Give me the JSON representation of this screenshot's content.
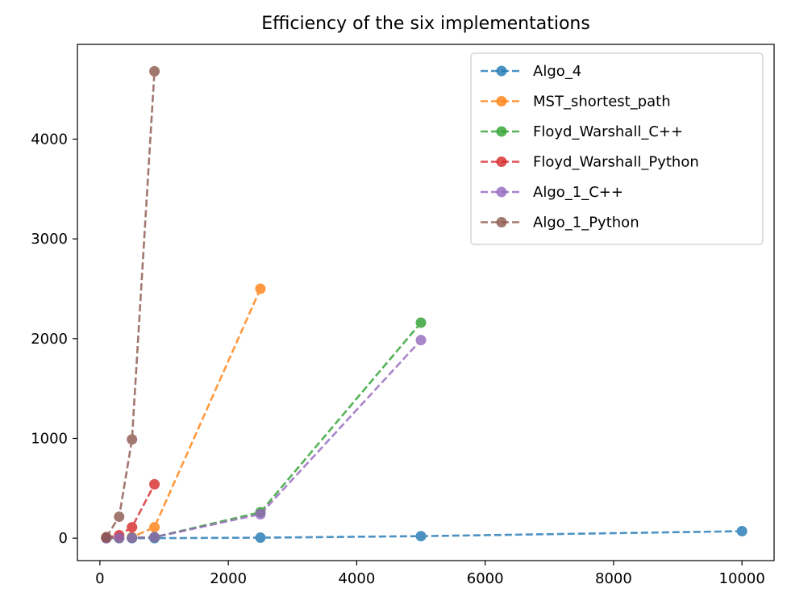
{
  "chart_data": {
    "type": "line",
    "title": "Efficiency of the six implementations",
    "xlabel": "",
    "ylabel": "",
    "xlim": [
      -350,
      10500
    ],
    "ylim": [
      -225,
      4950
    ],
    "xticks": [
      0,
      2000,
      4000,
      6000,
      8000,
      10000
    ],
    "yticks": [
      0,
      1000,
      2000,
      3000,
      4000
    ],
    "legend_position": "top-right",
    "line_style": "dashed",
    "marker": "circle",
    "series": [
      {
        "name": "Algo_4",
        "color": "#1f77b4",
        "x": [
          100,
          300,
          500,
          850,
          2500,
          5000,
          10000
        ],
        "y": [
          0,
          0,
          0,
          0,
          5,
          20,
          70
        ]
      },
      {
        "name": "MST_shortest_path",
        "color": "#ff7f0e",
        "x": [
          100,
          300,
          500,
          850,
          2500
        ],
        "y": [
          0,
          3,
          10,
          110,
          2500
        ]
      },
      {
        "name": "Floyd_Warshall_C++",
        "color": "#2ca02c",
        "x": [
          100,
          300,
          500,
          850,
          2500,
          5000
        ],
        "y": [
          0,
          1,
          3,
          10,
          260,
          2160
        ]
      },
      {
        "name": "Floyd_Warshall_Python",
        "color": "#d62728",
        "x": [
          100,
          300,
          500,
          850
        ],
        "y": [
          5,
          30,
          110,
          540
        ]
      },
      {
        "name": "Algo_1_C++",
        "color": "#9467bd",
        "x": [
          100,
          300,
          500,
          850,
          2500,
          5000
        ],
        "y": [
          0,
          1,
          3,
          10,
          240,
          1985
        ]
      },
      {
        "name": "Algo_1_Python",
        "color": "#8c564b",
        "x": [
          100,
          300,
          500,
          850
        ],
        "y": [
          10,
          215,
          990,
          4680
        ]
      }
    ]
  }
}
